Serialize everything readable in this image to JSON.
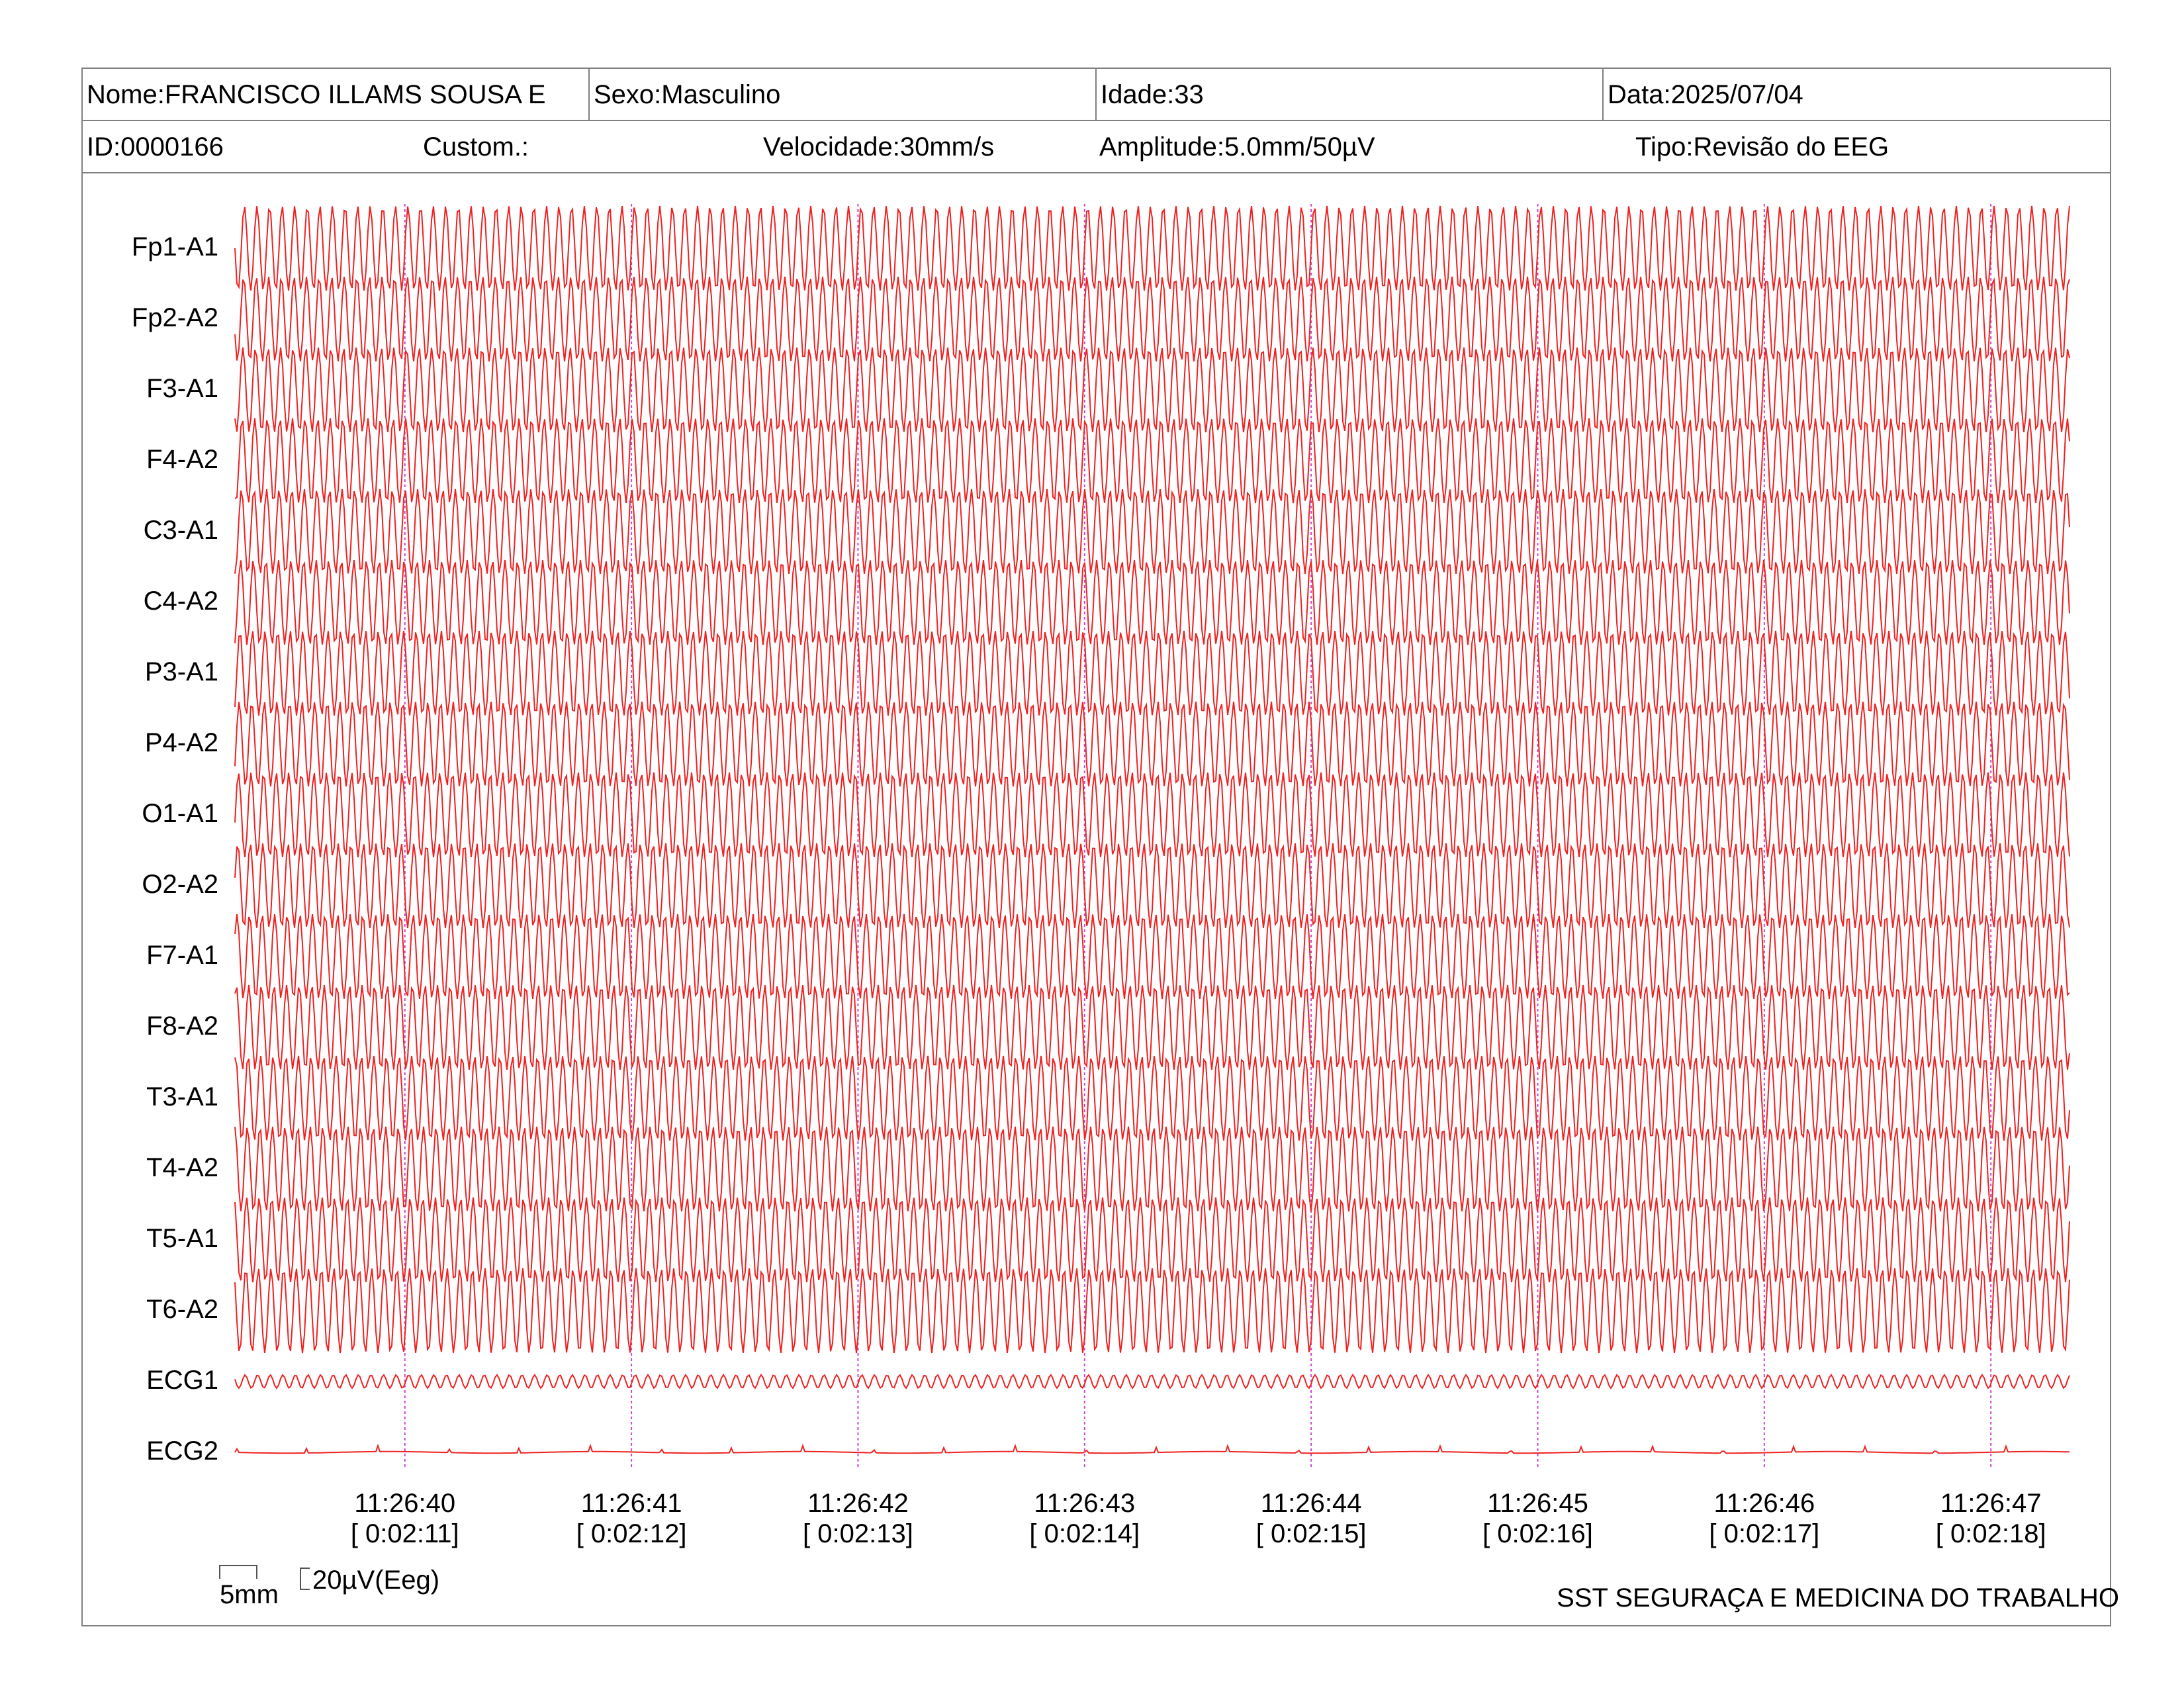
{
  "header": {
    "row1": [
      {
        "label": "Nome:",
        "value": "FRANCISCO ILLAMS SOUSA E"
      },
      {
        "label": "Sexo:",
        "value": "Masculino"
      },
      {
        "label": "Idade:",
        "value": "33"
      },
      {
        "label": "Data:",
        "value": "2025/07/04"
      }
    ],
    "row2": [
      {
        "label": "ID:",
        "value": "0000166"
      },
      {
        "label": "Custom.:",
        "value": ""
      },
      {
        "label": "Velocidade:",
        "value": "30mm/s"
      },
      {
        "label": "Amplitude:",
        "value": "5.0mm/50µV"
      },
      {
        "label": "Tipo:",
        "value": "Revisão do EEG"
      }
    ]
  },
  "chart_data": {
    "type": "line",
    "trace_color": "#ee2222",
    "marker_color": "#cc44cc",
    "channels": [
      "Fp1-A1",
      "Fp2-A2",
      "F3-A1",
      "F4-A2",
      "C3-A1",
      "C4-A2",
      "P3-A1",
      "P4-A2",
      "O1-A1",
      "O2-A2",
      "F7-A1",
      "F8-A2",
      "T3-A1",
      "T4-A2",
      "T5-A1",
      "T6-A2",
      "ECG1",
      "ECG2"
    ],
    "time_markers": [
      {
        "clock": "11:26:40",
        "elapsed": "[ 0:02:11]"
      },
      {
        "clock": "11:26:41",
        "elapsed": "[ 0:02:12]"
      },
      {
        "clock": "11:26:42",
        "elapsed": "[ 0:02:13]"
      },
      {
        "clock": "11:26:43",
        "elapsed": "[ 0:02:14]"
      },
      {
        "clock": "11:26:44",
        "elapsed": "[ 0:02:15]"
      },
      {
        "clock": "11:26:45",
        "elapsed": "[ 0:02:16]"
      },
      {
        "clock": "11:26:46",
        "elapsed": "[ 0:02:17]"
      },
      {
        "clock": "11:26:47",
        "elapsed": "[ 0:02:18]"
      }
    ],
    "signal_frequency_hz": 18,
    "ecg1_frequency_hz": 18,
    "ecg2_pattern": "low-amplitude baseline with small spikes",
    "x_range_seconds": [
      10.25,
      18.35
    ]
  },
  "scale": {
    "time": "5mm",
    "amplitude": "20µV(Eeg)"
  },
  "footer": {
    "organization": "SST SEGURAÇA E MEDICINA DO TRABALHO"
  }
}
